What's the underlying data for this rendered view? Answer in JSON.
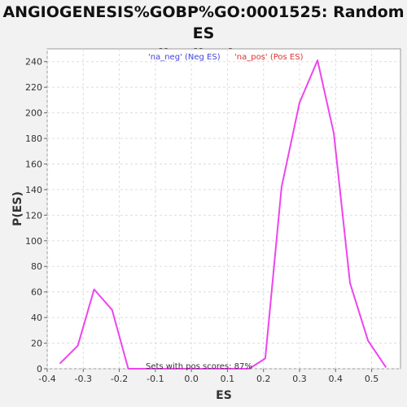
{
  "title_line1": "ANGIOGENESIS%GOBP%GO:0001525: Random ES",
  "title_line2": "distribution",
  "chart_data": {
    "type": "line",
    "xlabel": "ES",
    "ylabel": "P(ES)",
    "xlim": [
      -0.4,
      0.58
    ],
    "ylim": [
      0,
      250
    ],
    "xticks": [
      -0.4,
      -0.3,
      -0.2,
      -0.1,
      0.0,
      0.1,
      0.2,
      0.3,
      0.4,
      0.5
    ],
    "xtick_labels": [
      "-0.4",
      "-0.3",
      "-0.2",
      "-0.1",
      "0.0",
      "0.1",
      "0.2",
      "0.3",
      "0.4",
      "0.5"
    ],
    "yticks": [
      0,
      20,
      40,
      60,
      80,
      100,
      120,
      140,
      160,
      180,
      200,
      220,
      240
    ],
    "grid": true,
    "legend": [
      {
        "label": "'na_neg' (Neg ES)",
        "color": "#4444dd"
      },
      {
        "label": "'na_pos' (Pos ES)",
        "color": "#dd3333"
      }
    ],
    "series": [
      {
        "color": "#ee44ee",
        "x": [
          -0.365,
          -0.315,
          -0.27,
          -0.22,
          -0.175,
          -0.13,
          -0.08,
          -0.03,
          0.02,
          0.065,
          0.11,
          0.16,
          0.205,
          0.25,
          0.3,
          0.35,
          0.395,
          0.44,
          0.49,
          0.54
        ],
        "y": [
          4,
          18,
          62,
          46,
          0,
          0,
          0,
          0,
          0,
          0,
          0,
          0,
          8,
          142,
          208,
          241,
          184,
          67,
          22,
          1
        ]
      }
    ],
    "annotation": "Sets with pos scores: 87%"
  }
}
